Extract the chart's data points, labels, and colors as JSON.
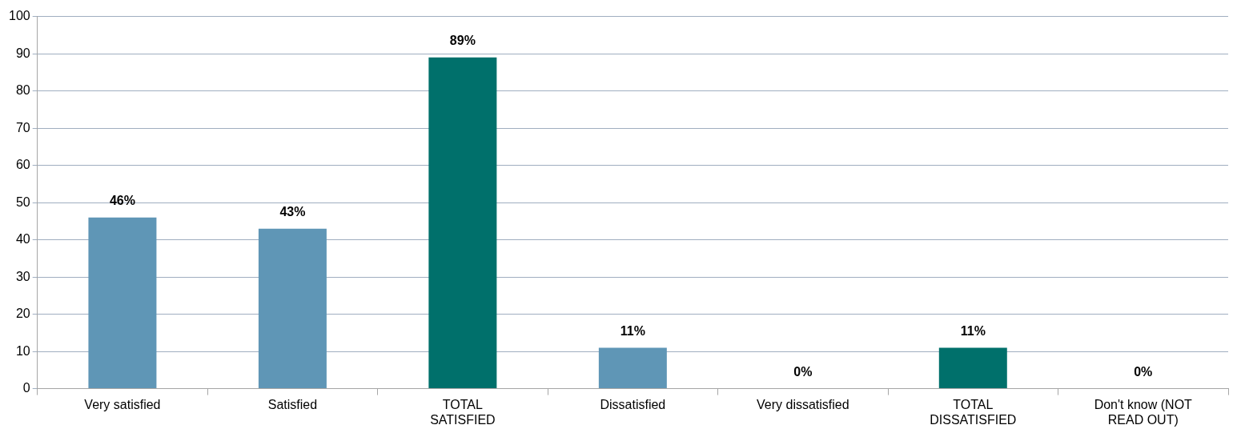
{
  "chart_data": {
    "type": "bar",
    "categories": [
      "Very satisfied",
      "Satisfied",
      "TOTAL SATISFIED",
      "Dissatisfied",
      "Very dissatisfied",
      "TOTAL DISSATISFIED",
      "Don't know (NOT READ OUT)"
    ],
    "values": [
      46,
      43,
      89,
      11,
      0,
      11,
      0
    ],
    "colors": [
      "#5f96b6",
      "#5f96b6",
      "#00706b",
      "#5f96b6",
      "#5f96b6",
      "#00706b",
      "#5f96b6"
    ],
    "value_labels": [
      "46%",
      "43%",
      "89%",
      "11%",
      "0%",
      "11%",
      "0%"
    ],
    "ylim": [
      0,
      100
    ],
    "yticks": [
      0,
      10,
      20,
      30,
      40,
      50,
      60,
      70,
      80,
      90,
      100
    ],
    "grid": "y"
  }
}
